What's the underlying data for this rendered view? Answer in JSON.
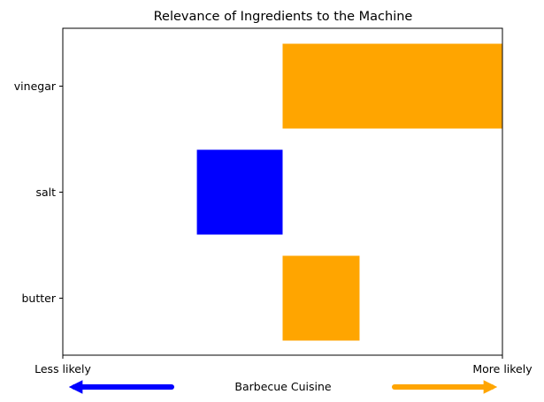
{
  "chart_data": {
    "type": "bar",
    "orientation": "horizontal",
    "title": "Relevance of Ingredients to the Machine",
    "categories": [
      "butter",
      "salt",
      "vinegar"
    ],
    "values": [
      0.35,
      -0.39,
      1.0
    ],
    "xlim": [
      -1.0,
      1.0
    ],
    "x_ticks": [
      {
        "value": -1.0,
        "label": "Less likely"
      },
      {
        "value": 1.0,
        "label": "More likely"
      }
    ],
    "xlabel": "Barbecue Cuisine",
    "grid": false,
    "legend": null,
    "colors": {
      "positive": "#ffa500",
      "negative": "#0000ff"
    },
    "arrows": [
      {
        "direction": "left",
        "color": "#0000ff"
      },
      {
        "direction": "right",
        "color": "#ffa500"
      }
    ]
  }
}
